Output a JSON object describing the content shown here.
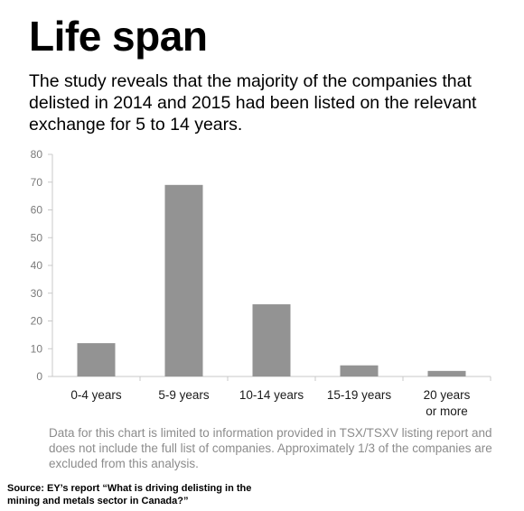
{
  "title": "Life span",
  "subtitle_lines": [
    "The study reveals that the majority of the companies that",
    "delisted in 2014 and 2015 had been listed on the relevant",
    "exchange for 5 to 14 years."
  ],
  "chart_data": {
    "type": "bar",
    "categories": [
      "0-4 years",
      "5-9 years",
      "10-14 years",
      "15-19 years",
      "20 years or more"
    ],
    "category_label_lines": [
      [
        "0-4 years"
      ],
      [
        "5-9 years"
      ],
      [
        "10-14 years"
      ],
      [
        "15-19 years"
      ],
      [
        "20 years",
        "or more"
      ]
    ],
    "values": [
      12,
      69,
      26,
      4,
      2
    ],
    "ylim": [
      0,
      80
    ],
    "yticks": [
      0,
      10,
      20,
      30,
      40,
      50,
      60,
      70,
      80
    ],
    "xlabel": "",
    "ylabel": "",
    "grid": false,
    "bar_color": "#939393"
  },
  "note_lines": [
    "Data for this chart is limited to information provided in TSX/TSXV listing report and",
    "does not include the full list of companies. Approximately 1/3 of the companies are",
    "excluded from this analysis."
  ],
  "source_lines": [
    "Source: EY’s report “What is driving delisting in the",
    "mining and metals sector in Canada?”"
  ]
}
